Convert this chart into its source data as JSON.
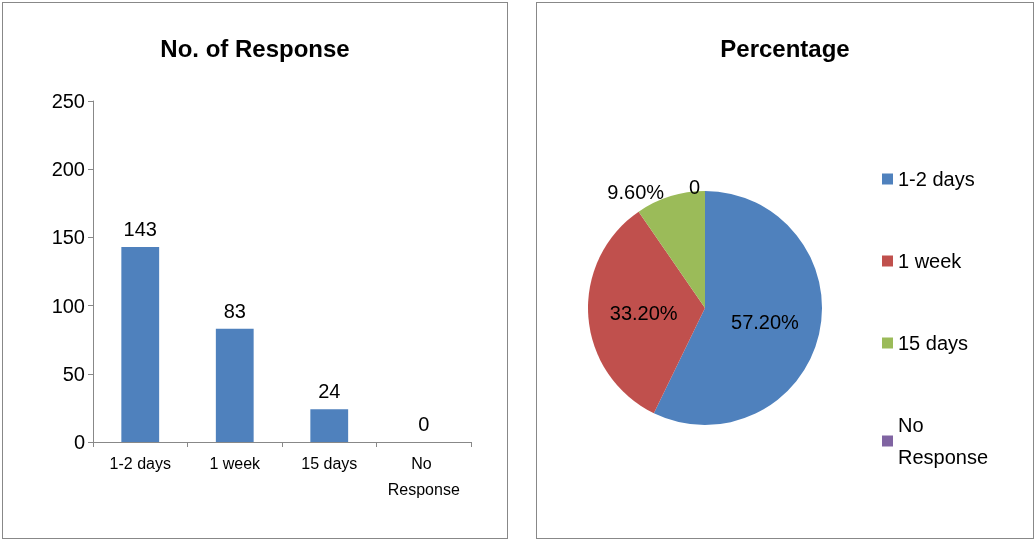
{
  "chart_data": [
    {
      "type": "bar",
      "title": "No. of Response",
      "categories": [
        "1-2 days",
        "1 week",
        "15 days",
        "No Response"
      ],
      "values": [
        143,
        83,
        24,
        0
      ],
      "color": "#4f81bd",
      "ylim": [
        0,
        250
      ],
      "yticks": [
        0,
        50,
        100,
        150,
        200,
        250
      ],
      "data_labels": true,
      "grid": false,
      "legend": false
    },
    {
      "type": "pie",
      "title": "Percentage",
      "categories": [
        "1-2 days",
        "1 week",
        "15 days",
        "No Response"
      ],
      "values": [
        57.2,
        33.2,
        9.6,
        0
      ],
      "value_labels": [
        "57.20%",
        "33.20%",
        "9.60%",
        "0"
      ],
      "colors": [
        "#4f81bd",
        "#c0504d",
        "#9bbb59",
        "#8064a2"
      ],
      "legend": "right"
    }
  ]
}
